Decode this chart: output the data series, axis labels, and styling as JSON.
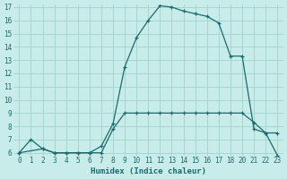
{
  "xlabel": "Humidex (Indice chaleur)",
  "bg_color": "#c8ecea",
  "grid_color": "#a8d4d2",
  "line_color": "#1a6b6b",
  "xlim": [
    -0.5,
    23.5
  ],
  "ylim": [
    5.8,
    17.2
  ],
  "xtick_positions": [
    0,
    1,
    2,
    3,
    4,
    5,
    6,
    7,
    8,
    9,
    10,
    11,
    12,
    13,
    14,
    15,
    16,
    17,
    18,
    20,
    21,
    22,
    23
  ],
  "xtick_labels": [
    "0",
    "1",
    "2",
    "3",
    "4",
    "5",
    "6",
    "7",
    "8",
    "9",
    "10",
    "11",
    "12",
    "13",
    "14",
    "15",
    "16",
    "17",
    "18",
    "20",
    "21",
    "22",
    "23"
  ],
  "ytick_positions": [
    6,
    7,
    8,
    9,
    10,
    11,
    12,
    13,
    14,
    15,
    16,
    17
  ],
  "ytick_labels": [
    "6",
    "7",
    "8",
    "9",
    "10",
    "11",
    "12",
    "13",
    "14",
    "15",
    "16",
    "17"
  ],
  "line1_x": [
    0,
    1,
    2,
    3,
    4,
    5,
    6,
    7,
    8,
    9,
    10,
    11,
    12,
    13,
    14,
    15,
    16,
    17,
    18,
    20,
    21,
    22,
    23
  ],
  "line1_y": [
    6.0,
    7.0,
    6.3,
    6.0,
    6.0,
    6.0,
    6.0,
    6.0,
    7.8,
    9.0,
    9.0,
    9.0,
    9.0,
    9.0,
    9.0,
    9.0,
    9.0,
    9.0,
    9.0,
    9.0,
    8.3,
    7.5,
    5.8
  ],
  "line2_x": [
    0,
    2,
    3,
    4,
    5,
    6,
    7,
    8,
    9,
    10,
    11,
    12,
    13,
    14,
    15,
    16,
    17,
    18,
    20,
    21,
    22,
    23
  ],
  "line2_y": [
    6.0,
    6.3,
    6.0,
    6.0,
    6.0,
    6.0,
    6.5,
    8.2,
    12.5,
    14.7,
    16.0,
    17.1,
    17.0,
    16.7,
    16.5,
    16.3,
    15.8,
    13.3,
    13.3,
    7.8,
    7.5,
    7.5
  ]
}
